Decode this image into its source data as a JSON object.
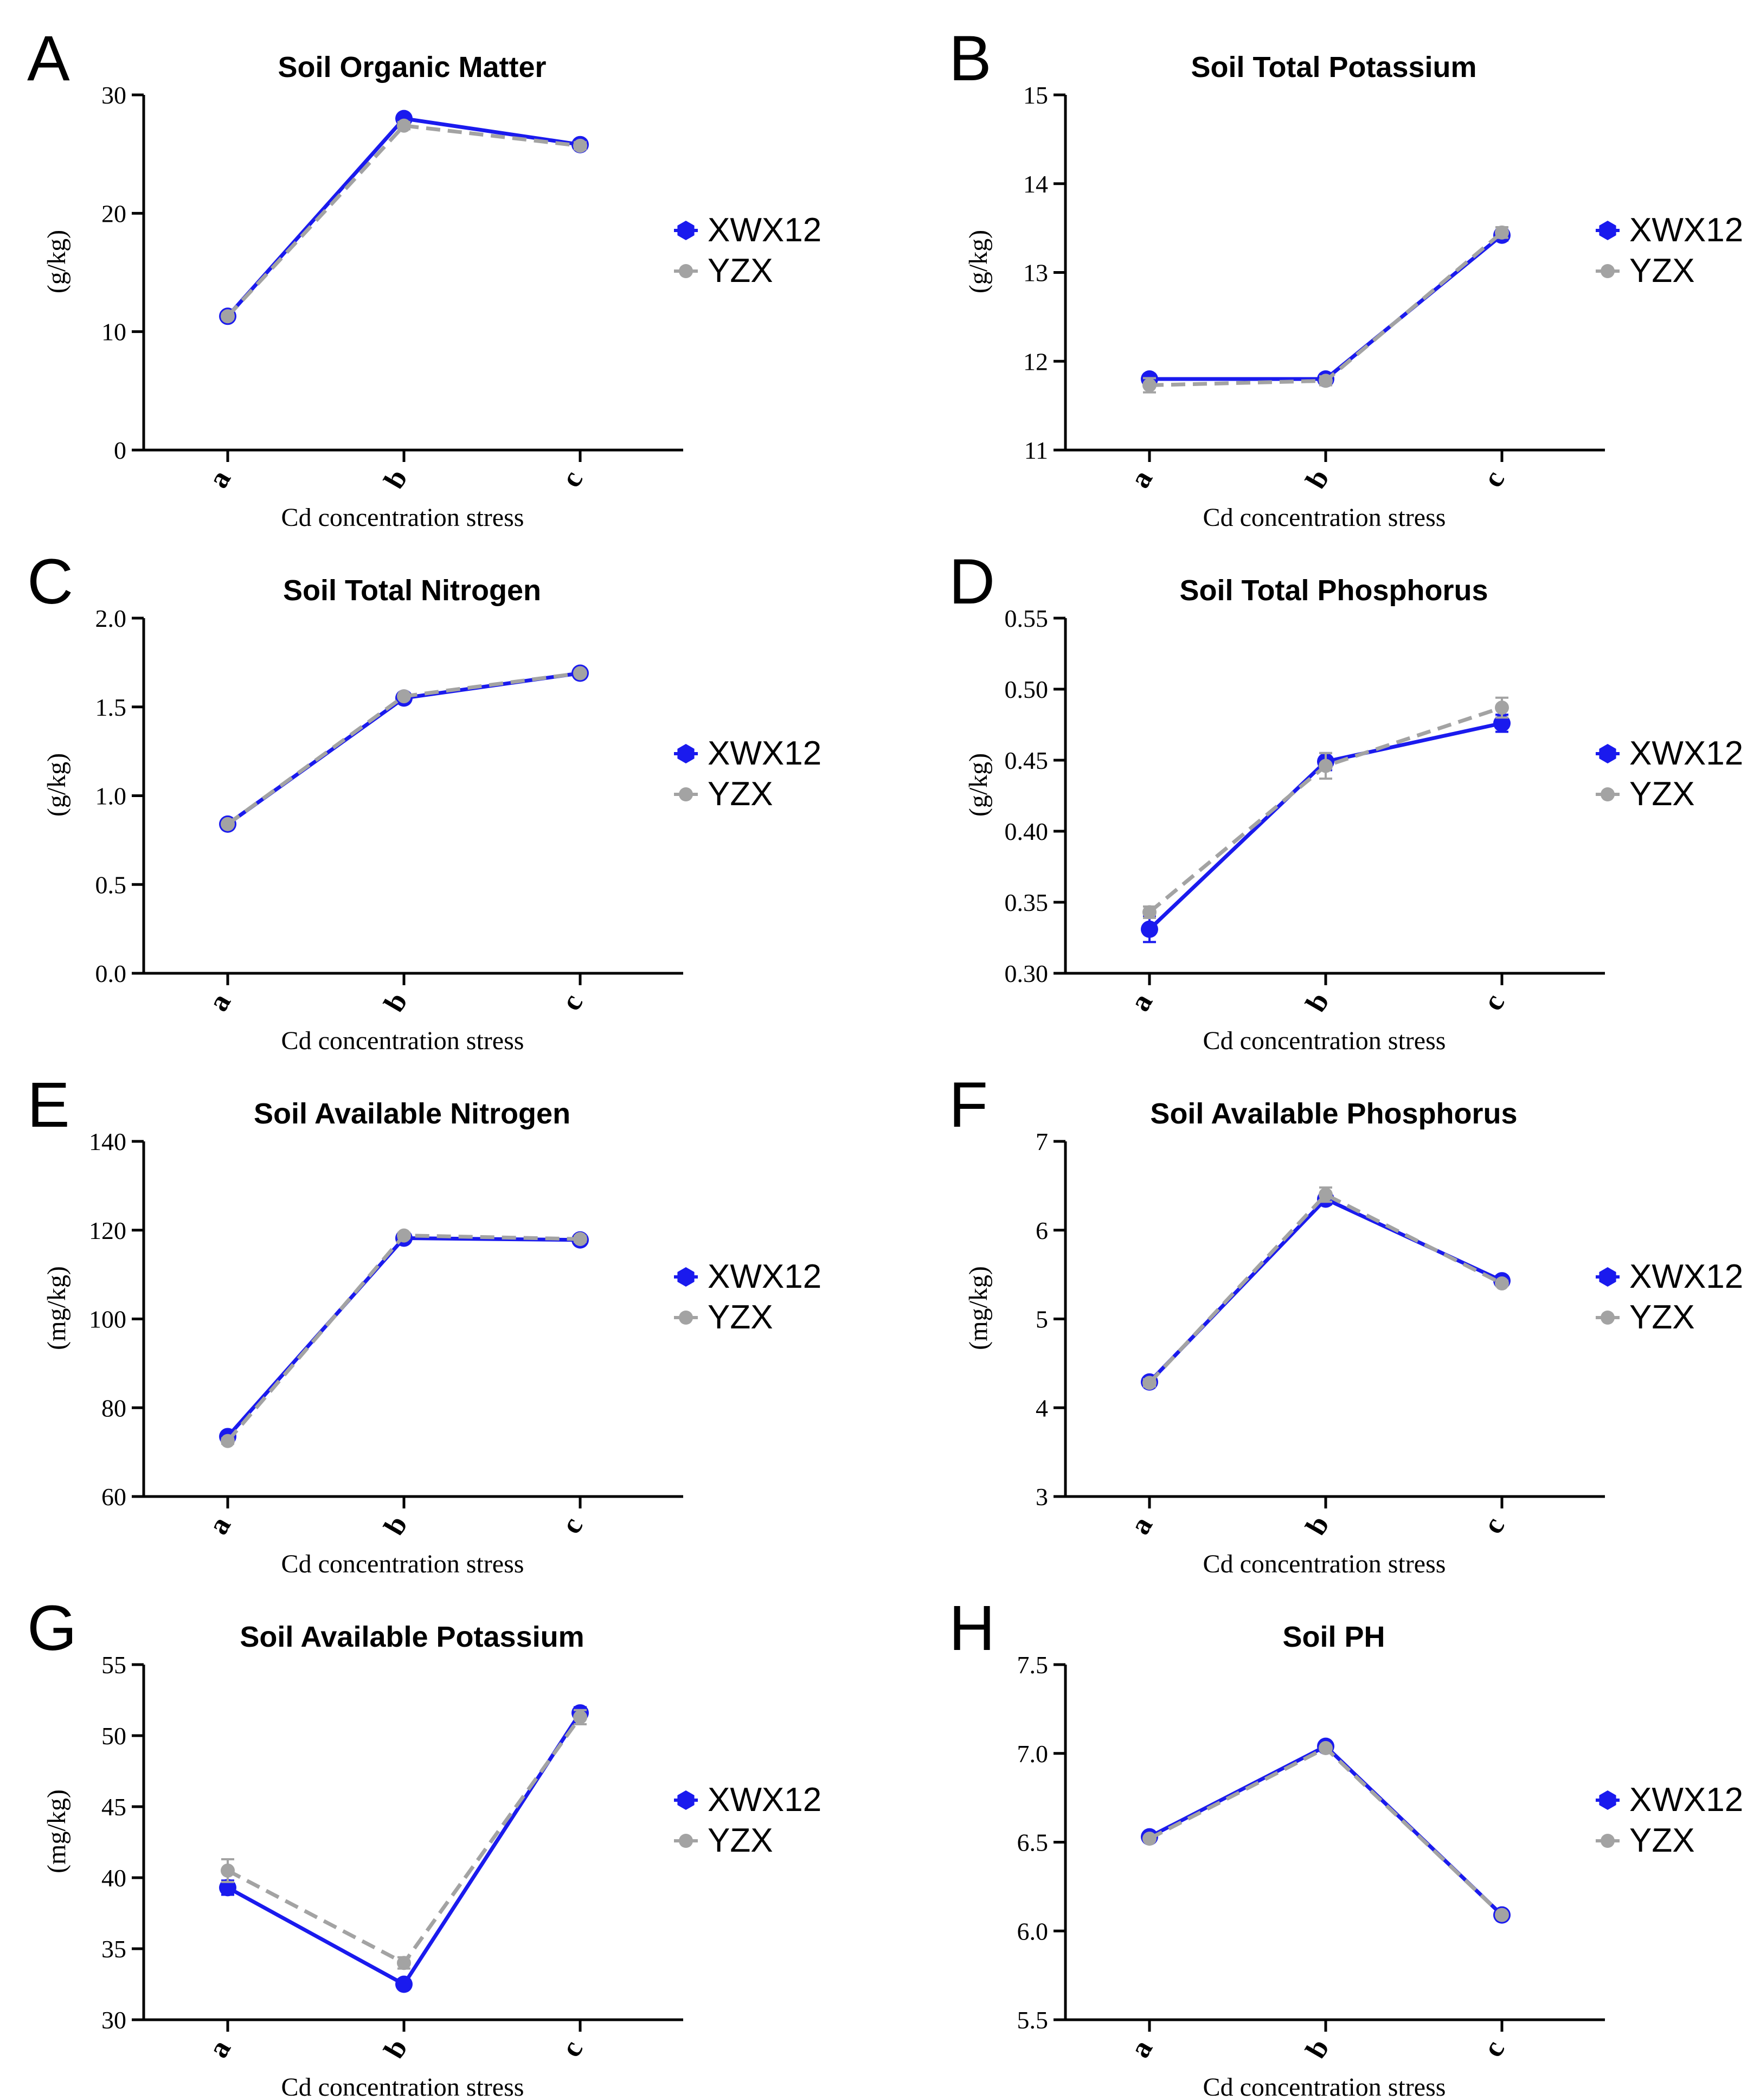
{
  "figure": {
    "colors": {
      "XWX12": "#1a1aee",
      "YZX": "#a3a3a3",
      "axis": "#000000"
    }
  },
  "chart_data": [
    {
      "panel": "A",
      "type": "line",
      "title": "Soil Organic Matter",
      "xlabel": "Cd concentration stress",
      "ylabel": "(g/kg)",
      "categories": [
        "a",
        "b",
        "c"
      ],
      "ylim": [
        0,
        30
      ],
      "yticks": [
        "0",
        "10",
        "20",
        "30"
      ],
      "ytick_values": [
        0,
        10,
        20,
        30
      ],
      "series": [
        {
          "name": "XWX12",
          "values": [
            11.3,
            28.0,
            25.8
          ],
          "errors": [
            0.3,
            0.4,
            0.3
          ]
        },
        {
          "name": "YZX",
          "values": [
            11.3,
            27.4,
            25.7
          ],
          "errors": [
            0.2,
            0.3,
            0.3
          ]
        }
      ]
    },
    {
      "panel": "B",
      "type": "line",
      "title": "Soil Total Potassium",
      "xlabel": "Cd concentration stress",
      "ylabel": "(g/kg)",
      "categories": [
        "a",
        "b",
        "c"
      ],
      "ylim": [
        11,
        15
      ],
      "yticks": [
        "11",
        "12",
        "13",
        "14",
        "15"
      ],
      "ytick_values": [
        11,
        12,
        13,
        14,
        15
      ],
      "series": [
        {
          "name": "XWX12",
          "values": [
            11.8,
            11.8,
            13.42
          ],
          "errors": [
            0.05,
            0.05,
            0.06
          ]
        },
        {
          "name": "YZX",
          "values": [
            11.73,
            11.78,
            13.45
          ],
          "errors": [
            0.08,
            0.05,
            0.06
          ]
        }
      ]
    },
    {
      "panel": "C",
      "type": "line",
      "title": "Soil Total Nitrogen",
      "xlabel": "Cd concentration stress",
      "ylabel": "(g/kg)",
      "categories": [
        "a",
        "b",
        "c"
      ],
      "ylim": [
        0,
        2
      ],
      "yticks": [
        "0.0",
        "0.5",
        "1.0",
        "1.5",
        "2.0"
      ],
      "ytick_values": [
        0,
        0.5,
        1.0,
        1.5,
        2.0
      ],
      "series": [
        {
          "name": "XWX12",
          "values": [
            0.84,
            1.55,
            1.69
          ],
          "errors": [
            0.01,
            0.01,
            0.01
          ]
        },
        {
          "name": "YZX",
          "values": [
            0.84,
            1.56,
            1.69
          ],
          "errors": [
            0.01,
            0.01,
            0.01
          ]
        }
      ]
    },
    {
      "panel": "D",
      "type": "line",
      "title": "Soil Total Phosphorus",
      "xlabel": "Cd concentration stress",
      "ylabel": "(g/kg)",
      "categories": [
        "a",
        "b",
        "c"
      ],
      "ylim": [
        0.3,
        0.55
      ],
      "yticks": [
        "0.30",
        "0.35",
        "0.40",
        "0.45",
        "0.50",
        "0.55"
      ],
      "ytick_values": [
        0.3,
        0.35,
        0.4,
        0.45,
        0.5,
        0.55
      ],
      "series": [
        {
          "name": "XWX12",
          "values": [
            0.331,
            0.449,
            0.476
          ],
          "errors": [
            0.009,
            0.006,
            0.006
          ]
        },
        {
          "name": "YZX",
          "values": [
            0.343,
            0.446,
            0.487
          ],
          "errors": [
            0.004,
            0.009,
            0.007
          ]
        }
      ]
    },
    {
      "panel": "E",
      "type": "line",
      "title": "Soil Available Nitrogen",
      "xlabel": "Cd concentration stress",
      "ylabel": "(mg/kg)",
      "categories": [
        "a",
        "b",
        "c"
      ],
      "ylim": [
        60,
        140
      ],
      "yticks": [
        "60",
        "80",
        "100",
        "120",
        "140"
      ],
      "ytick_values": [
        60,
        80,
        100,
        120,
        140
      ],
      "series": [
        {
          "name": "XWX12",
          "values": [
            73.5,
            118.2,
            117.8
          ],
          "errors": [
            0.8,
            0.6,
            0.6
          ]
        },
        {
          "name": "YZX",
          "values": [
            72.5,
            118.8,
            118.0
          ],
          "errors": [
            0.6,
            0.6,
            0.6
          ]
        }
      ]
    },
    {
      "panel": "F",
      "type": "line",
      "title": "Soil Available Phosphorus",
      "xlabel": "Cd concentration stress",
      "ylabel": "(mg/kg)",
      "categories": [
        "a",
        "b",
        "c"
      ],
      "ylim": [
        3,
        7
      ],
      "yticks": [
        "3",
        "4",
        "5",
        "6",
        "7"
      ],
      "ytick_values": [
        3,
        4,
        5,
        6,
        7
      ],
      "series": [
        {
          "name": "XWX12",
          "values": [
            4.29,
            6.35,
            5.43
          ],
          "errors": [
            0.04,
            0.06,
            0.03
          ]
        },
        {
          "name": "YZX",
          "values": [
            4.28,
            6.4,
            5.4
          ],
          "errors": [
            0.04,
            0.08,
            0.03
          ]
        }
      ]
    },
    {
      "panel": "G",
      "type": "line",
      "title": "Soil Available Potassium",
      "xlabel": "Cd concentration stress",
      "ylabel": "(mg/kg)",
      "categories": [
        "a",
        "b",
        "c"
      ],
      "ylim": [
        30,
        55
      ],
      "yticks": [
        "30",
        "35",
        "40",
        "45",
        "50",
        "55"
      ],
      "ytick_values": [
        30,
        35,
        40,
        45,
        50,
        55
      ],
      "series": [
        {
          "name": "XWX12",
          "values": [
            39.3,
            32.5,
            51.6
          ],
          "errors": [
            0.5,
            0.3,
            0.4
          ]
        },
        {
          "name": "YZX",
          "values": [
            40.5,
            34.0,
            51.3
          ],
          "errors": [
            0.8,
            0.4,
            0.5
          ]
        }
      ]
    },
    {
      "panel": "H",
      "type": "line",
      "title": "Soil PH",
      "xlabel": "Cd concentration stress",
      "ylabel": "",
      "categories": [
        "a",
        "b",
        "c"
      ],
      "ylim": [
        5.5,
        7.5
      ],
      "yticks": [
        "5.5",
        "6.0",
        "6.5",
        "7.0",
        "7.5"
      ],
      "ytick_values": [
        5.5,
        6.0,
        6.5,
        7.0,
        7.5
      ],
      "series": [
        {
          "name": "XWX12",
          "values": [
            6.53,
            7.04,
            6.09
          ],
          "errors": [
            0.01,
            0.01,
            0.01
          ]
        },
        {
          "name": "YZX",
          "values": [
            6.52,
            7.03,
            6.09
          ],
          "errors": [
            0.01,
            0.01,
            0.01
          ]
        }
      ]
    }
  ]
}
